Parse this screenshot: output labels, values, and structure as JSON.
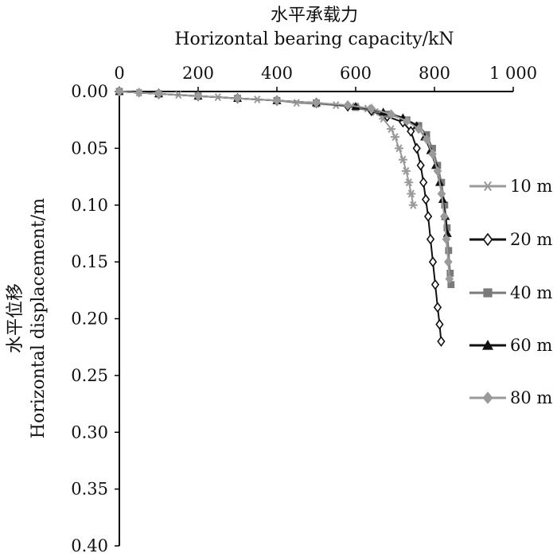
{
  "chart_data": {
    "type": "line",
    "title_zh": "水平承载力",
    "xlabel": "Horizontal bearing capacity/kN",
    "ylabel_zh": "水平位移",
    "ylabel": "Horizontal displacement/m",
    "xlim": [
      0,
      1000
    ],
    "ylim": [
      0,
      0.4
    ],
    "x_axis_position": "top",
    "y_axis_inverted": true,
    "grid": false,
    "legend_position": "right",
    "xticks": [
      {
        "value": 0,
        "label": "0"
      },
      {
        "value": 200,
        "label": "200"
      },
      {
        "value": 400,
        "label": "400"
      },
      {
        "value": 600,
        "label": "600"
      },
      {
        "value": 800,
        "label": "800"
      },
      {
        "value": 1000,
        "label": "1 000"
      }
    ],
    "yticks": [
      {
        "value": 0,
        "label": "0.00"
      },
      {
        "value": 0.05,
        "label": "0.05"
      },
      {
        "value": 0.1,
        "label": "0.10"
      },
      {
        "value": 0.15,
        "label": "0.15"
      },
      {
        "value": 0.2,
        "label": "0.20"
      },
      {
        "value": 0.25,
        "label": "0.25"
      },
      {
        "value": 0.3,
        "label": "0.30"
      },
      {
        "value": 0.35,
        "label": "0.35"
      },
      {
        "value": 0.4,
        "label": "0.40"
      }
    ],
    "series": [
      {
        "name": "10 m",
        "color": "#9a9a9a",
        "marker": "asterisk",
        "points": [
          [
            0,
            0
          ],
          [
            50,
            0.001
          ],
          [
            100,
            0.002
          ],
          [
            150,
            0.003
          ],
          [
            200,
            0.004
          ],
          [
            250,
            0.005
          ],
          [
            300,
            0.006
          ],
          [
            350,
            0.007
          ],
          [
            400,
            0.008
          ],
          [
            450,
            0.01
          ],
          [
            500,
            0.011
          ],
          [
            550,
            0.012
          ],
          [
            600,
            0.013
          ],
          [
            630,
            0.015
          ],
          [
            650,
            0.018
          ],
          [
            670,
            0.024
          ],
          [
            690,
            0.033
          ],
          [
            700,
            0.04
          ],
          [
            710,
            0.05
          ],
          [
            720,
            0.06
          ],
          [
            728,
            0.07
          ],
          [
            735,
            0.08
          ],
          [
            741,
            0.09
          ],
          [
            746,
            0.1
          ]
        ]
      },
      {
        "name": "20 m",
        "color": "#111111",
        "marker": "diamond-open",
        "points": [
          [
            0,
            0
          ],
          [
            100,
            0.002
          ],
          [
            200,
            0.004
          ],
          [
            300,
            0.006
          ],
          [
            400,
            0.008
          ],
          [
            500,
            0.01
          ],
          [
            580,
            0.013
          ],
          [
            640,
            0.017
          ],
          [
            680,
            0.022
          ],
          [
            720,
            0.027
          ],
          [
            740,
            0.035
          ],
          [
            755,
            0.05
          ],
          [
            765,
            0.065
          ],
          [
            772,
            0.08
          ],
          [
            778,
            0.095
          ],
          [
            784,
            0.11
          ],
          [
            790,
            0.13
          ],
          [
            796,
            0.15
          ],
          [
            802,
            0.17
          ],
          [
            808,
            0.19
          ],
          [
            813,
            0.205
          ],
          [
            817,
            0.22
          ]
        ]
      },
      {
        "name": "40 m",
        "color": "#7a7a7a",
        "marker": "square",
        "points": [
          [
            0,
            0
          ],
          [
            100,
            0.002
          ],
          [
            200,
            0.004
          ],
          [
            300,
            0.006
          ],
          [
            400,
            0.008
          ],
          [
            500,
            0.01
          ],
          [
            600,
            0.014
          ],
          [
            680,
            0.02
          ],
          [
            730,
            0.025
          ],
          [
            760,
            0.03
          ],
          [
            780,
            0.038
          ],
          [
            795,
            0.05
          ],
          [
            808,
            0.065
          ],
          [
            818,
            0.08
          ],
          [
            826,
            0.1
          ],
          [
            832,
            0.12
          ],
          [
            836,
            0.14
          ],
          [
            840,
            0.16
          ],
          [
            842,
            0.17
          ]
        ]
      },
      {
        "name": "60 m",
        "color": "#111111",
        "marker": "triangle",
        "points": [
          [
            0,
            0
          ],
          [
            100,
            0.002
          ],
          [
            200,
            0.004
          ],
          [
            300,
            0.006
          ],
          [
            400,
            0.008
          ],
          [
            500,
            0.01
          ],
          [
            600,
            0.013
          ],
          [
            670,
            0.018
          ],
          [
            720,
            0.023
          ],
          [
            755,
            0.03
          ],
          [
            775,
            0.04
          ],
          [
            790,
            0.052
          ],
          [
            803,
            0.065
          ],
          [
            813,
            0.08
          ],
          [
            821,
            0.095
          ],
          [
            828,
            0.11
          ],
          [
            833,
            0.125
          ]
        ]
      },
      {
        "name": "80 m",
        "color": "#9a9a9a",
        "marker": "diamond",
        "points": [
          [
            0,
            0
          ],
          [
            50,
            0.001
          ],
          [
            100,
            0.002
          ],
          [
            200,
            0.004
          ],
          [
            300,
            0.006
          ],
          [
            400,
            0.008
          ],
          [
            500,
            0.01
          ],
          [
            580,
            0.012
          ],
          [
            640,
            0.015
          ],
          [
            690,
            0.02
          ],
          [
            730,
            0.026
          ],
          [
            760,
            0.033
          ],
          [
            780,
            0.042
          ],
          [
            795,
            0.055
          ],
          [
            808,
            0.07
          ],
          [
            818,
            0.09
          ],
          [
            825,
            0.11
          ],
          [
            830,
            0.13
          ],
          [
            835,
            0.15
          ],
          [
            838,
            0.165
          ]
        ]
      }
    ]
  }
}
